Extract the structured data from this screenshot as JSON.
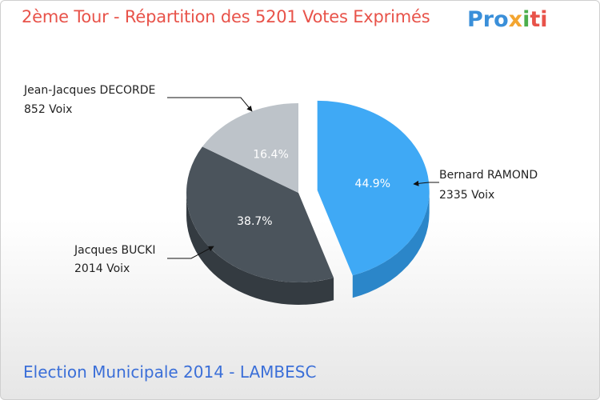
{
  "header": {
    "title": "2ème Tour - Répartition des 5201 Votes Exprimés",
    "logo": [
      "Pro",
      "x",
      "i",
      "ti"
    ]
  },
  "footer": "Election Municipale 2014 - LAMBESC",
  "chart_data": {
    "type": "pie",
    "title": "2ème Tour - Répartition des 5201 Votes Exprimés",
    "total": 5201,
    "slices": [
      {
        "name": "Bernard RAMOND",
        "votes": 2335,
        "votes_label": "2335 Voix",
        "percent": 44.9,
        "percent_label": "44.9%",
        "color": "#3fa9f5",
        "side": "#2b86c9",
        "exploded": true
      },
      {
        "name": "Jacques BUCKI",
        "votes": 2014,
        "votes_label": "2014 Voix",
        "percent": 38.7,
        "percent_label": "38.7%",
        "color": "#4b545c",
        "side": "#343b41",
        "exploded": false
      },
      {
        "name": "Jean-Jacques DECORDE",
        "votes": 852,
        "votes_label": "852 Voix",
        "percent": 16.4,
        "percent_label": "16.4%",
        "color": "#bdc3c9",
        "side": "#9aa1a8",
        "exploded": false
      }
    ]
  }
}
